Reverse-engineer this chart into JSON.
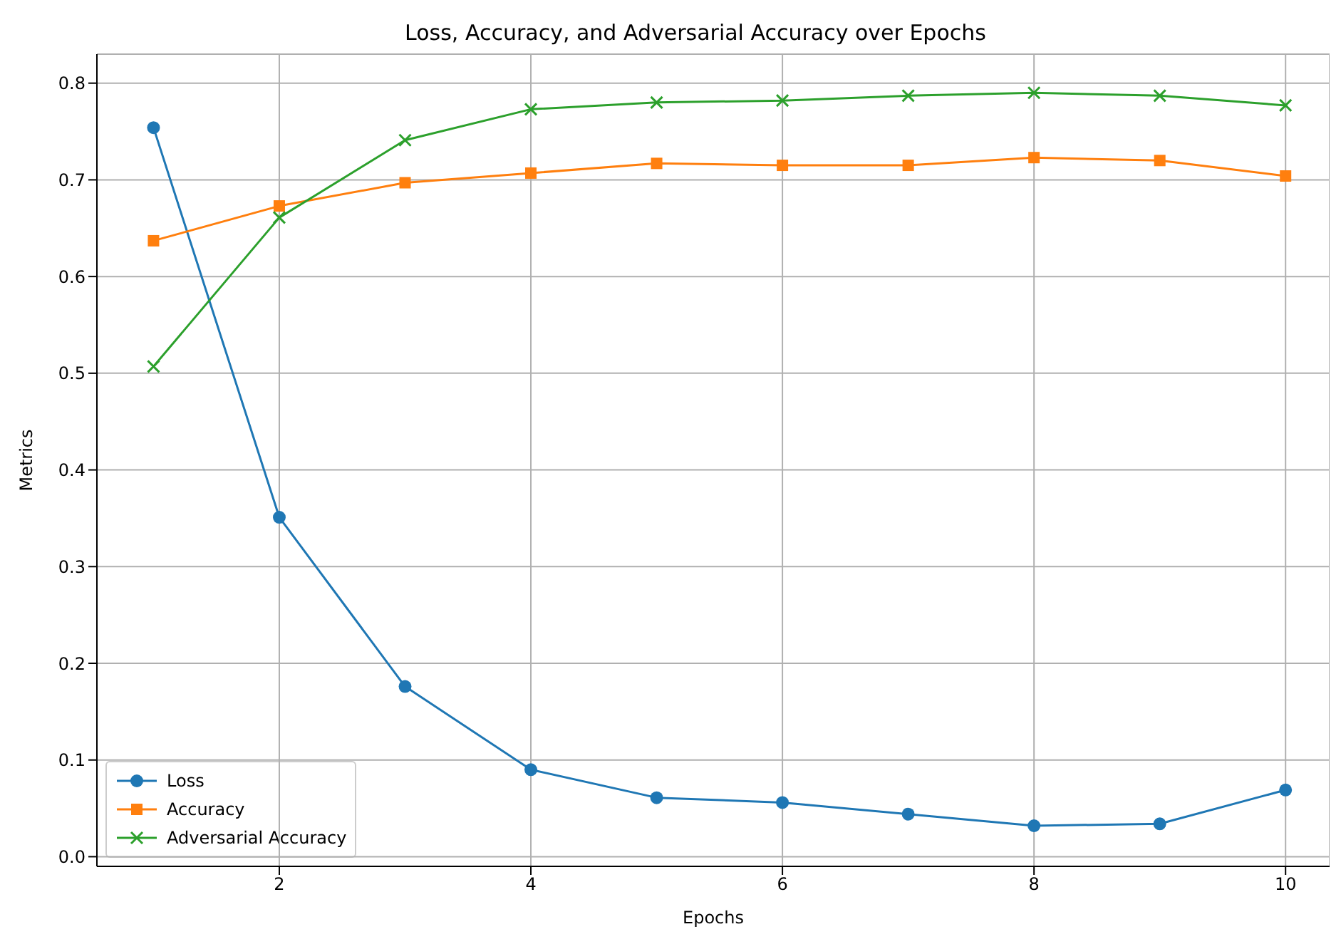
{
  "chart_data": {
    "type": "line",
    "title": "Loss, Accuracy, and Adversarial Accuracy over Epochs",
    "xlabel": "Epochs",
    "ylabel": "Metrics",
    "x": [
      1,
      2,
      3,
      4,
      5,
      6,
      7,
      8,
      9,
      10
    ],
    "series": [
      {
        "name": "Loss",
        "color": "#1f77b4",
        "marker": "circle",
        "values": [
          0.754,
          0.351,
          0.176,
          0.09,
          0.061,
          0.056,
          0.044,
          0.032,
          0.034,
          0.069
        ]
      },
      {
        "name": "Accuracy",
        "color": "#ff7f0e",
        "marker": "square",
        "values": [
          0.637,
          0.673,
          0.697,
          0.707,
          0.717,
          0.715,
          0.715,
          0.723,
          0.72,
          0.704
        ]
      },
      {
        "name": "Adversarial Accuracy",
        "color": "#2ca02c",
        "marker": "cross",
        "values": [
          0.507,
          0.661,
          0.741,
          0.773,
          0.78,
          0.782,
          0.787,
          0.79,
          0.787,
          0.777
        ]
      }
    ],
    "xlim": [
      0.55,
      10.35
    ],
    "xticks": [
      2,
      4,
      6,
      8,
      10
    ],
    "ylim": [
      -0.01,
      0.83
    ],
    "yticks": [
      {
        "value": 0,
        "label": "0.0"
      },
      0.1,
      0.2,
      0.3,
      0.4,
      0.5,
      0.6,
      0.7,
      0.8
    ],
    "grid": true,
    "legend": "bottom left",
    "line_style": "solid"
  }
}
